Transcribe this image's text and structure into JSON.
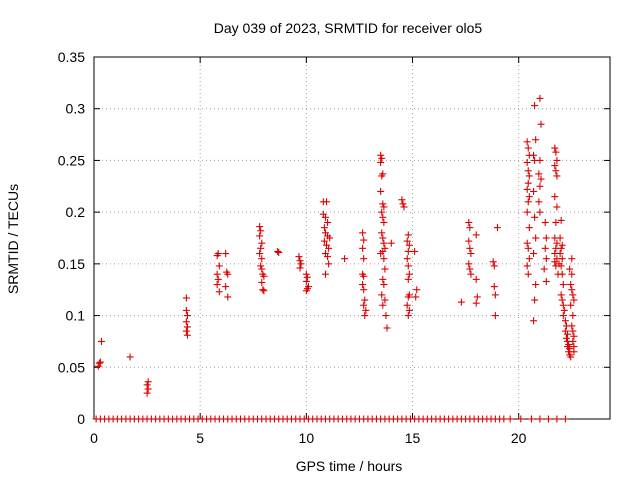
{
  "chart_data": {
    "type": "scatter",
    "title": "Day 039 of 2023, SRMTID for receiver olo5",
    "xlabel": "GPS time / hours",
    "ylabel": "SRMTID / TECUs",
    "xlim": [
      0,
      24.3
    ],
    "ylim": [
      0,
      0.35
    ],
    "grid": true,
    "marker": "plus",
    "color": "#dd0000",
    "xticks": [
      0,
      5,
      10,
      15,
      20
    ],
    "xtick_labels": [
      "0",
      "5",
      "10",
      "15",
      "20"
    ],
    "yticks": [
      0,
      0.05,
      0.1,
      0.15,
      0.2,
      0.25,
      0.3,
      0.35
    ],
    "ytick_labels": [
      "0",
      "0.05",
      "0.1",
      "0.15",
      "0.2",
      "0.25",
      "0.3",
      "0.35"
    ],
    "zero_x": [
      0.1,
      0.3,
      0.5,
      0.7,
      0.9,
      1.1,
      1.3,
      1.5,
      1.7,
      1.9,
      2.1,
      2.3,
      2.5,
      2.7,
      2.9,
      3.1,
      3.3,
      3.5,
      3.7,
      3.9,
      4.1,
      4.3,
      4.5,
      4.7,
      4.9,
      5.1,
      5.3,
      5.5,
      5.7,
      5.9,
      6.1,
      6.3,
      6.5,
      6.7,
      6.9,
      7.1,
      7.3,
      7.5,
      7.7,
      7.9,
      8.1,
      8.3,
      8.5,
      8.7,
      8.9,
      9.1,
      9.3,
      9.5,
      9.7,
      9.9,
      10.1,
      10.3,
      10.5,
      10.7,
      10.9,
      11.1,
      11.3,
      11.5,
      11.7,
      11.9,
      12.1,
      12.3,
      12.5,
      12.7,
      12.9,
      13.1,
      13.3,
      13.5,
      13.7,
      13.9,
      14.1,
      14.3,
      14.5,
      14.7,
      14.9,
      15.1,
      15.3,
      15.5,
      15.7,
      15.9,
      16.1,
      16.3,
      16.5,
      16.7,
      16.9,
      17.1,
      17.3,
      17.5,
      17.7,
      17.9,
      18.1,
      18.3,
      18.5,
      18.7,
      18.9,
      19.1,
      19.3,
      19.6,
      20.1,
      20.6,
      21.0,
      21.4,
      21.8,
      22.2
    ],
    "points": [
      [
        0.2,
        0.051
      ],
      [
        0.25,
        0.054
      ],
      [
        0.3,
        0.055
      ],
      [
        0.35,
        0.075
      ],
      [
        1.7,
        0.06
      ],
      [
        2.5,
        0.025
      ],
      [
        2.55,
        0.029
      ],
      [
        2.5,
        0.033
      ],
      [
        2.55,
        0.036
      ],
      [
        4.35,
        0.117
      ],
      [
        4.35,
        0.105
      ],
      [
        4.4,
        0.1
      ],
      [
        4.35,
        0.094
      ],
      [
        4.4,
        0.089
      ],
      [
        4.35,
        0.085
      ],
      [
        4.4,
        0.081
      ],
      [
        5.8,
        0.158
      ],
      [
        5.85,
        0.16
      ],
      [
        5.9,
        0.148
      ],
      [
        5.8,
        0.14
      ],
      [
        5.85,
        0.135
      ],
      [
        5.8,
        0.13
      ],
      [
        5.9,
        0.123
      ],
      [
        6.2,
        0.16
      ],
      [
        6.25,
        0.142
      ],
      [
        6.3,
        0.14
      ],
      [
        6.2,
        0.128
      ],
      [
        6.3,
        0.118
      ],
      [
        7.8,
        0.186
      ],
      [
        7.85,
        0.182
      ],
      [
        7.8,
        0.177
      ],
      [
        7.9,
        0.17
      ],
      [
        7.85,
        0.165
      ],
      [
        7.8,
        0.16
      ],
      [
        7.9,
        0.155
      ],
      [
        7.85,
        0.148
      ],
      [
        7.9,
        0.145
      ],
      [
        7.95,
        0.14
      ],
      [
        8.0,
        0.138
      ],
      [
        7.9,
        0.132
      ],
      [
        7.95,
        0.125
      ],
      [
        8.0,
        0.124
      ],
      [
        8.65,
        0.162
      ],
      [
        8.7,
        0.161
      ],
      [
        9.65,
        0.157
      ],
      [
        9.7,
        0.153
      ],
      [
        9.75,
        0.15
      ],
      [
        9.7,
        0.146
      ],
      [
        10.0,
        0.14
      ],
      [
        10.05,
        0.137
      ],
      [
        10.0,
        0.133
      ],
      [
        10.1,
        0.128
      ],
      [
        10.05,
        0.126
      ],
      [
        10.0,
        0.124
      ],
      [
        10.8,
        0.21
      ],
      [
        10.95,
        0.21
      ],
      [
        10.8,
        0.198
      ],
      [
        10.9,
        0.195
      ],
      [
        11.0,
        0.19
      ],
      [
        10.85,
        0.185
      ],
      [
        10.9,
        0.18
      ],
      [
        11.0,
        0.177
      ],
      [
        10.85,
        0.172
      ],
      [
        10.95,
        0.168
      ],
      [
        11.05,
        0.165
      ],
      [
        10.9,
        0.16
      ],
      [
        11.0,
        0.157
      ],
      [
        11.1,
        0.175
      ],
      [
        11.05,
        0.15
      ],
      [
        10.9,
        0.14
      ],
      [
        11.8,
        0.155
      ],
      [
        12.65,
        0.18
      ],
      [
        12.7,
        0.173
      ],
      [
        12.65,
        0.165
      ],
      [
        12.7,
        0.155
      ],
      [
        12.65,
        0.14
      ],
      [
        12.7,
        0.138
      ],
      [
        12.65,
        0.13
      ],
      [
        12.7,
        0.125
      ],
      [
        12.75,
        0.115
      ],
      [
        12.7,
        0.11
      ],
      [
        12.8,
        0.105
      ],
      [
        12.75,
        0.1
      ],
      [
        13.5,
        0.255
      ],
      [
        13.55,
        0.252
      ],
      [
        13.5,
        0.248
      ],
      [
        13.6,
        0.237
      ],
      [
        13.55,
        0.235
      ],
      [
        13.5,
        0.22
      ],
      [
        13.6,
        0.208
      ],
      [
        13.65,
        0.205
      ],
      [
        13.55,
        0.2
      ],
      [
        13.6,
        0.195
      ],
      [
        13.65,
        0.19
      ],
      [
        13.55,
        0.18
      ],
      [
        13.6,
        0.175
      ],
      [
        13.65,
        0.17
      ],
      [
        13.7,
        0.165
      ],
      [
        13.6,
        0.162
      ],
      [
        13.65,
        0.155
      ],
      [
        13.7,
        0.145
      ],
      [
        13.6,
        0.135
      ],
      [
        13.65,
        0.13
      ],
      [
        13.55,
        0.12
      ],
      [
        13.7,
        0.115
      ],
      [
        13.6,
        0.11
      ],
      [
        13.75,
        0.1
      ],
      [
        13.8,
        0.088
      ],
      [
        13.5,
        0.16
      ],
      [
        14.0,
        0.17
      ],
      [
        14.5,
        0.212
      ],
      [
        14.55,
        0.208
      ],
      [
        14.6,
        0.205
      ],
      [
        14.8,
        0.178
      ],
      [
        14.75,
        0.172
      ],
      [
        14.85,
        0.168
      ],
      [
        14.8,
        0.162
      ],
      [
        14.75,
        0.155
      ],
      [
        14.8,
        0.148
      ],
      [
        14.85,
        0.14
      ],
      [
        14.8,
        0.135
      ],
      [
        14.85,
        0.12
      ],
      [
        14.8,
        0.118
      ],
      [
        14.75,
        0.11
      ],
      [
        14.85,
        0.105
      ],
      [
        14.8,
        0.1
      ],
      [
        15.1,
        0.162
      ],
      [
        15.2,
        0.125
      ],
      [
        15.15,
        0.118
      ],
      [
        17.3,
        0.113
      ],
      [
        17.65,
        0.19
      ],
      [
        17.7,
        0.185
      ],
      [
        17.65,
        0.172
      ],
      [
        17.7,
        0.165
      ],
      [
        17.75,
        0.16
      ],
      [
        17.65,
        0.15
      ],
      [
        17.7,
        0.145
      ],
      [
        17.75,
        0.14
      ],
      [
        18.0,
        0.178
      ],
      [
        18.0,
        0.135
      ],
      [
        18.05,
        0.118
      ],
      [
        18.0,
        0.112
      ],
      [
        18.8,
        0.152
      ],
      [
        18.85,
        0.148
      ],
      [
        18.9,
        0.12
      ],
      [
        18.85,
        0.128
      ],
      [
        18.9,
        0.1
      ],
      [
        19.0,
        0.185
      ],
      [
        20.4,
        0.268
      ],
      [
        20.45,
        0.262
      ],
      [
        20.5,
        0.255
      ],
      [
        20.4,
        0.248
      ],
      [
        20.45,
        0.24
      ],
      [
        20.5,
        0.235
      ],
      [
        20.45,
        0.228
      ],
      [
        20.4,
        0.222
      ],
      [
        20.5,
        0.215
      ],
      [
        20.45,
        0.21
      ],
      [
        20.4,
        0.2
      ],
      [
        20.5,
        0.185
      ],
      [
        20.4,
        0.17
      ],
      [
        20.45,
        0.165
      ],
      [
        20.5,
        0.155
      ],
      [
        20.4,
        0.148
      ],
      [
        20.45,
        0.14
      ],
      [
        20.7,
        0.255
      ],
      [
        20.75,
        0.25
      ],
      [
        20.8,
        0.27
      ],
      [
        20.7,
        0.22
      ],
      [
        20.75,
        0.195
      ],
      [
        20.8,
        0.175
      ],
      [
        20.7,
        0.16
      ],
      [
        20.8,
        0.13
      ],
      [
        20.75,
        0.115
      ],
      [
        20.7,
        0.095
      ],
      [
        20.75,
        0.303
      ],
      [
        21.0,
        0.31
      ],
      [
        21.05,
        0.285
      ],
      [
        21.0,
        0.25
      ],
      [
        20.95,
        0.237
      ],
      [
        21.05,
        0.232
      ],
      [
        21.0,
        0.225
      ],
      [
        20.95,
        0.21
      ],
      [
        21.0,
        0.2
      ],
      [
        21.25,
        0.19
      ],
      [
        21.3,
        0.175
      ],
      [
        21.25,
        0.165
      ],
      [
        21.3,
        0.155
      ],
      [
        21.2,
        0.145
      ],
      [
        21.3,
        0.133
      ],
      [
        21.7,
        0.262
      ],
      [
        21.75,
        0.258
      ],
      [
        21.8,
        0.25
      ],
      [
        21.7,
        0.245
      ],
      [
        21.75,
        0.24
      ],
      [
        21.8,
        0.235
      ],
      [
        21.7,
        0.215
      ],
      [
        21.8,
        0.205
      ],
      [
        21.75,
        0.19
      ],
      [
        21.7,
        0.175
      ],
      [
        21.8,
        0.17
      ],
      [
        21.75,
        0.165
      ],
      [
        21.7,
        0.16
      ],
      [
        21.8,
        0.155
      ],
      [
        21.75,
        0.148
      ],
      [
        21.85,
        0.14
      ],
      [
        21.7,
        0.152
      ],
      [
        21.9,
        0.15
      ],
      [
        22.0,
        0.192
      ],
      [
        21.95,
        0.175
      ],
      [
        22.05,
        0.168
      ],
      [
        22.0,
        0.165
      ],
      [
        21.95,
        0.16
      ],
      [
        22.05,
        0.155
      ],
      [
        22.0,
        0.148
      ],
      [
        22.05,
        0.14
      ],
      [
        22.1,
        0.13
      ],
      [
        22.0,
        0.12
      ],
      [
        22.05,
        0.115
      ],
      [
        22.1,
        0.11
      ],
      [
        22.15,
        0.105
      ],
      [
        22.1,
        0.1
      ],
      [
        22.2,
        0.095
      ],
      [
        22.25,
        0.09
      ],
      [
        22.2,
        0.085
      ],
      [
        22.3,
        0.082
      ],
      [
        22.25,
        0.078
      ],
      [
        22.3,
        0.075
      ],
      [
        22.35,
        0.072
      ],
      [
        22.3,
        0.07
      ],
      [
        22.4,
        0.068
      ],
      [
        22.35,
        0.065
      ],
      [
        22.4,
        0.062
      ],
      [
        22.45,
        0.06
      ],
      [
        22.4,
        0.145
      ],
      [
        22.5,
        0.14
      ],
      [
        22.45,
        0.13
      ],
      [
        22.5,
        0.125
      ],
      [
        22.45,
        0.11
      ],
      [
        22.55,
        0.1
      ],
      [
        22.5,
        0.09
      ],
      [
        22.6,
        0.08
      ],
      [
        22.55,
        0.075
      ],
      [
        22.6,
        0.065
      ],
      [
        22.55,
        0.085
      ],
      [
        22.5,
        0.155
      ],
      [
        22.6,
        0.115
      ],
      [
        22.55,
        0.12
      ],
      [
        22.6,
        0.07
      ]
    ]
  }
}
